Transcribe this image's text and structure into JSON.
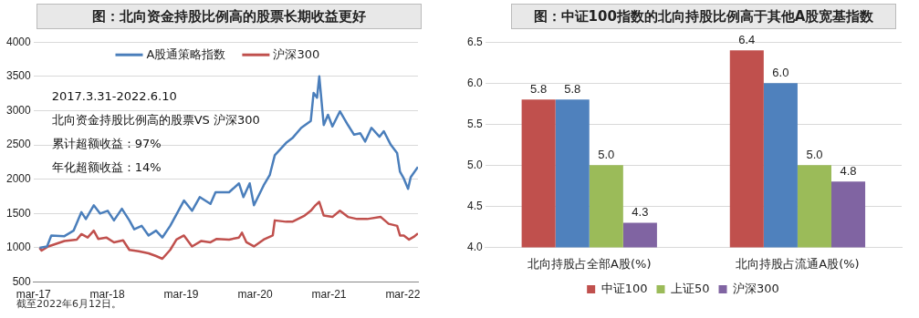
{
  "chart_data": [
    {
      "type": "line",
      "title": "图：北向资金持股比例高的股票长期收益更好",
      "xlim": [
        "2017-03-01",
        "2022-05-15"
      ],
      "xticks": [
        {
          "value": "2017-03-01",
          "label": "mar-17"
        },
        {
          "value": "2018-03-01",
          "label": "mar-18"
        },
        {
          "value": "2019-03-01",
          "label": "mar-19"
        },
        {
          "value": "2020-03-01",
          "label": "mar-20"
        },
        {
          "value": "2021-03-01",
          "label": "mar-21"
        },
        {
          "value": "2022-03-01",
          "label": "mar-22"
        }
      ],
      "ylim": [
        500,
        4000
      ],
      "yticks": [
        500,
        1000,
        1500,
        2000,
        2500,
        3000,
        3500,
        4000
      ],
      "grid": "y",
      "legend": "top",
      "marker": "none",
      "line_style": "solid",
      "series": [
        {
          "name": "A股通策略指数",
          "color": "#4a7ebb",
          "x": [
            "2017-03-31",
            "2017-05-07",
            "2017-05-28",
            "2017-08-01",
            "2017-09-15",
            "2017-10-24",
            "2017-11-15",
            "2017-12-24",
            "2018-01-24",
            "2018-03-03",
            "2018-04-03",
            "2018-05-12",
            "2018-06-18",
            "2018-07-12",
            "2018-08-18",
            "2018-09-21",
            "2018-10-28",
            "2018-11-28",
            "2019-01-06",
            "2019-02-21",
            "2019-03-15",
            "2019-04-24",
            "2019-06-01",
            "2019-07-24",
            "2019-08-18",
            "2019-10-24",
            "2019-12-12",
            "2020-01-03",
            "2020-02-03",
            "2020-02-24",
            "2020-04-12",
            "2020-05-12",
            "2020-06-06",
            "2020-08-01",
            "2020-09-01",
            "2020-10-15",
            "2020-12-01",
            "2020-12-15",
            "2021-01-01",
            "2021-01-12",
            "2021-02-03",
            "2021-02-24",
            "2021-03-18",
            "2021-04-24",
            "2021-06-03",
            "2021-07-03",
            "2021-08-03",
            "2021-08-27",
            "2021-09-27",
            "2021-11-06",
            "2021-11-27",
            "2022-01-01",
            "2022-02-01",
            "2022-02-15",
            "2022-03-06",
            "2022-03-27",
            "2022-04-09",
            "2022-05-15"
          ],
          "values": [
            1000,
            1020,
            1180,
            1170,
            1250,
            1520,
            1420,
            1620,
            1500,
            1540,
            1400,
            1570,
            1400,
            1270,
            1320,
            1180,
            1250,
            1150,
            1320,
            1570,
            1690,
            1540,
            1740,
            1640,
            1810,
            1810,
            1940,
            1740,
            1940,
            1620,
            1910,
            2060,
            2350,
            2530,
            2600,
            2750,
            2850,
            3260,
            3190,
            3500,
            2790,
            2940,
            2770,
            2990,
            2790,
            2650,
            2670,
            2550,
            2750,
            2620,
            2700,
            2500,
            2380,
            2110,
            2010,
            1860,
            2030,
            2180
          ]
        },
        {
          "name": "沪深300",
          "color": "#c0504d",
          "x": [
            "2017-03-31",
            "2017-04-10",
            "2017-05-13",
            "2017-08-01",
            "2017-10-01",
            "2017-10-24",
            "2017-11-24",
            "2017-12-24",
            "2018-01-15",
            "2018-02-24",
            "2018-04-03",
            "2018-05-18",
            "2018-06-18",
            "2018-08-03",
            "2018-09-21",
            "2018-10-28",
            "2018-11-28",
            "2019-01-06",
            "2019-02-06",
            "2019-03-15",
            "2019-04-24",
            "2019-06-09",
            "2019-07-24",
            "2019-08-24",
            "2019-10-24",
            "2019-12-12",
            "2019-12-27",
            "2020-01-18",
            "2020-02-24",
            "2020-04-12",
            "2020-05-27",
            "2020-06-06",
            "2020-08-01",
            "2020-09-01",
            "2020-11-01",
            "2020-12-01",
            "2020-12-24",
            "2021-01-12",
            "2021-02-03",
            "2021-03-18",
            "2021-04-24",
            "2021-06-03",
            "2021-07-18",
            "2021-09-06",
            "2021-11-12",
            "2021-12-21",
            "2022-02-01",
            "2022-02-15",
            "2022-03-06",
            "2022-04-01",
            "2022-04-24",
            "2022-05-15"
          ],
          "values": [
            1000,
            960,
            1020,
            1100,
            1120,
            1200,
            1150,
            1250,
            1130,
            1150,
            1080,
            1110,
            970,
            950,
            920,
            880,
            840,
            970,
            1120,
            1180,
            1020,
            1100,
            1080,
            1130,
            1120,
            1150,
            1220,
            1080,
            1020,
            1120,
            1180,
            1400,
            1380,
            1380,
            1470,
            1540,
            1620,
            1670,
            1470,
            1450,
            1540,
            1450,
            1420,
            1420,
            1450,
            1350,
            1320,
            1180,
            1180,
            1120,
            1160,
            1210
          ]
        }
      ],
      "annotations": [
        "2017.3.31-2022.6.10",
        "北向资金持股比例高的股票VS 沪深300",
        "累计超额收益：97%",
        "年化超额收益：14%",
        "截至2022年6月12日。"
      ]
    },
    {
      "type": "bar",
      "title": "图：中证100指数的北向持股比例高于其他A股宽基指数",
      "categories": [
        "北向持股占全部A股(%)",
        "北向持股占流通A股(%)"
      ],
      "ylim": [
        4.0,
        6.5
      ],
      "yticks": [
        {
          "value": 4.0,
          "label": "4.0"
        },
        {
          "value": 4.5,
          "label": "4.5"
        },
        {
          "value": 5.0,
          "label": "5.0"
        },
        {
          "value": 5.5,
          "label": "5.5"
        },
        {
          "value": 6.0,
          "label": "6.0"
        },
        {
          "value": 6.5,
          "label": "6.5"
        }
      ],
      "grid": "y",
      "legend": "bottom",
      "series": [
        {
          "name": "中证100",
          "color": "#c0504d",
          "values": [
            5.8,
            6.4
          ],
          "value_labels": [
            "5.8",
            "6.4"
          ]
        },
        {
          "color": "#4f81bd",
          "values": [
            5.8,
            6.0
          ],
          "value_labels": [
            "5.8",
            "6.0"
          ]
        },
        {
          "name": "上证50",
          "color": "#9bbb59",
          "values": [
            5.0,
            5.0
          ],
          "value_labels": [
            "5.0",
            "5.0"
          ]
        },
        {
          "name": "沪深300",
          "color": "#8064a2",
          "values": [
            4.3,
            4.8
          ],
          "value_labels": [
            "4.3",
            "4.8"
          ]
        }
      ]
    }
  ]
}
